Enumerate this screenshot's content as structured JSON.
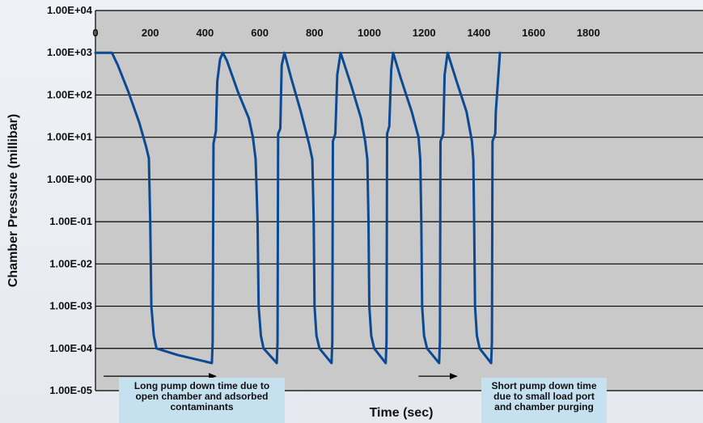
{
  "chart_data": {
    "type": "line",
    "title": "",
    "xlabel": "Time (sec)",
    "ylabel": "Chamber Pressure (millibar)",
    "y_scale": "log",
    "xlim": [
      0,
      1900
    ],
    "ylim": [
      1e-05,
      10000
    ],
    "grid": true,
    "x_ticks": [
      "0",
      "200",
      "400",
      "600",
      "800",
      "1000",
      "1200",
      "1400",
      "1600",
      "1800"
    ],
    "y_ticks": [
      "1.00E+04",
      "1.00E+03",
      "1.00E+02",
      "1.00E+01",
      "1.00E+00",
      "1.00E-01",
      "1.00E-02",
      "1.00E-03",
      "1.00E-04",
      "1.00E-05"
    ],
    "series": [
      {
        "name": "",
        "color": "#0b4a92",
        "points": [
          [
            0,
            1000
          ],
          [
            60,
            1000
          ],
          [
            82,
            500
          ],
          [
            120,
            120
          ],
          [
            160,
            22
          ],
          [
            185,
            6
          ],
          [
            195,
            3.2
          ],
          [
            200,
            0.1
          ],
          [
            204,
            0.001
          ],
          [
            213,
            0.0002
          ],
          [
            223,
            0.0001
          ],
          [
            300,
            7e-05
          ],
          [
            425,
            4.5e-05
          ],
          [
            428,
            0.00015
          ],
          [
            431,
            7
          ],
          [
            440,
            14
          ],
          [
            445,
            210
          ],
          [
            455,
            700
          ],
          [
            465,
            1000
          ],
          [
            480,
            650
          ],
          [
            520,
            120
          ],
          [
            560,
            28
          ],
          [
            575,
            10
          ],
          [
            585,
            3
          ],
          [
            592,
            0.1
          ],
          [
            596,
            0.001
          ],
          [
            604,
            0.0002
          ],
          [
            614,
            0.0001
          ],
          [
            662,
            4.5e-05
          ],
          [
            665,
            0.00015
          ],
          [
            667,
            12
          ],
          [
            675,
            16
          ],
          [
            680,
            500
          ],
          [
            690,
            1000
          ],
          [
            715,
            250
          ],
          [
            750,
            40
          ],
          [
            780,
            7
          ],
          [
            792,
            3
          ],
          [
            797,
            0.1
          ],
          [
            800,
            0.001
          ],
          [
            807,
            0.0002
          ],
          [
            818,
            0.0001
          ],
          [
            862,
            4.5e-05
          ],
          [
            865,
            0.00015
          ],
          [
            867,
            8
          ],
          [
            876,
            12
          ],
          [
            883,
            300
          ],
          [
            895,
            1000
          ],
          [
            935,
            160
          ],
          [
            970,
            28
          ],
          [
            985,
            8
          ],
          [
            993,
            3
          ],
          [
            997,
            0.1
          ],
          [
            1000,
            0.001
          ],
          [
            1007,
            0.0002
          ],
          [
            1018,
            0.0001
          ],
          [
            1060,
            4.5e-05
          ],
          [
            1063,
            0.00015
          ],
          [
            1065,
            12
          ],
          [
            1073,
            18
          ],
          [
            1080,
            400
          ],
          [
            1087,
            1000
          ],
          [
            1115,
            250
          ],
          [
            1155,
            40
          ],
          [
            1180,
            10
          ],
          [
            1186,
            3
          ],
          [
            1190,
            0.1
          ],
          [
            1193,
            0.001
          ],
          [
            1200,
            0.0002
          ],
          [
            1211,
            0.0001
          ],
          [
            1255,
            4.5e-05
          ],
          [
            1258,
            0.00015
          ],
          [
            1260,
            8
          ],
          [
            1270,
            12
          ],
          [
            1275,
            300
          ],
          [
            1286,
            1000
          ],
          [
            1320,
            200
          ],
          [
            1355,
            40
          ],
          [
            1375,
            8
          ],
          [
            1380,
            3
          ],
          [
            1383,
            0.1
          ],
          [
            1386,
            0.001
          ],
          [
            1393,
            0.0002
          ],
          [
            1403,
            0.0001
          ],
          [
            1445,
            4.5e-05
          ],
          [
            1448,
            0.00015
          ],
          [
            1450,
            8
          ],
          [
            1460,
            12
          ],
          [
            1462,
            40
          ],
          [
            1477,
            1000
          ]
        ]
      }
    ],
    "annotations": [
      {
        "lines": [
          "Long pump down time due to",
          "open chamber and adsorbed",
          "contaminants"
        ],
        "arrow_x": [
          30,
          440
        ],
        "arrow_y": 2.2e-05
      },
      {
        "lines": [
          "Short pump down time",
          "due to small load port",
          "and chamber purging"
        ],
        "arrow_x": [
          1180,
          1320
        ],
        "arrow_y": 2.2e-05
      }
    ]
  }
}
